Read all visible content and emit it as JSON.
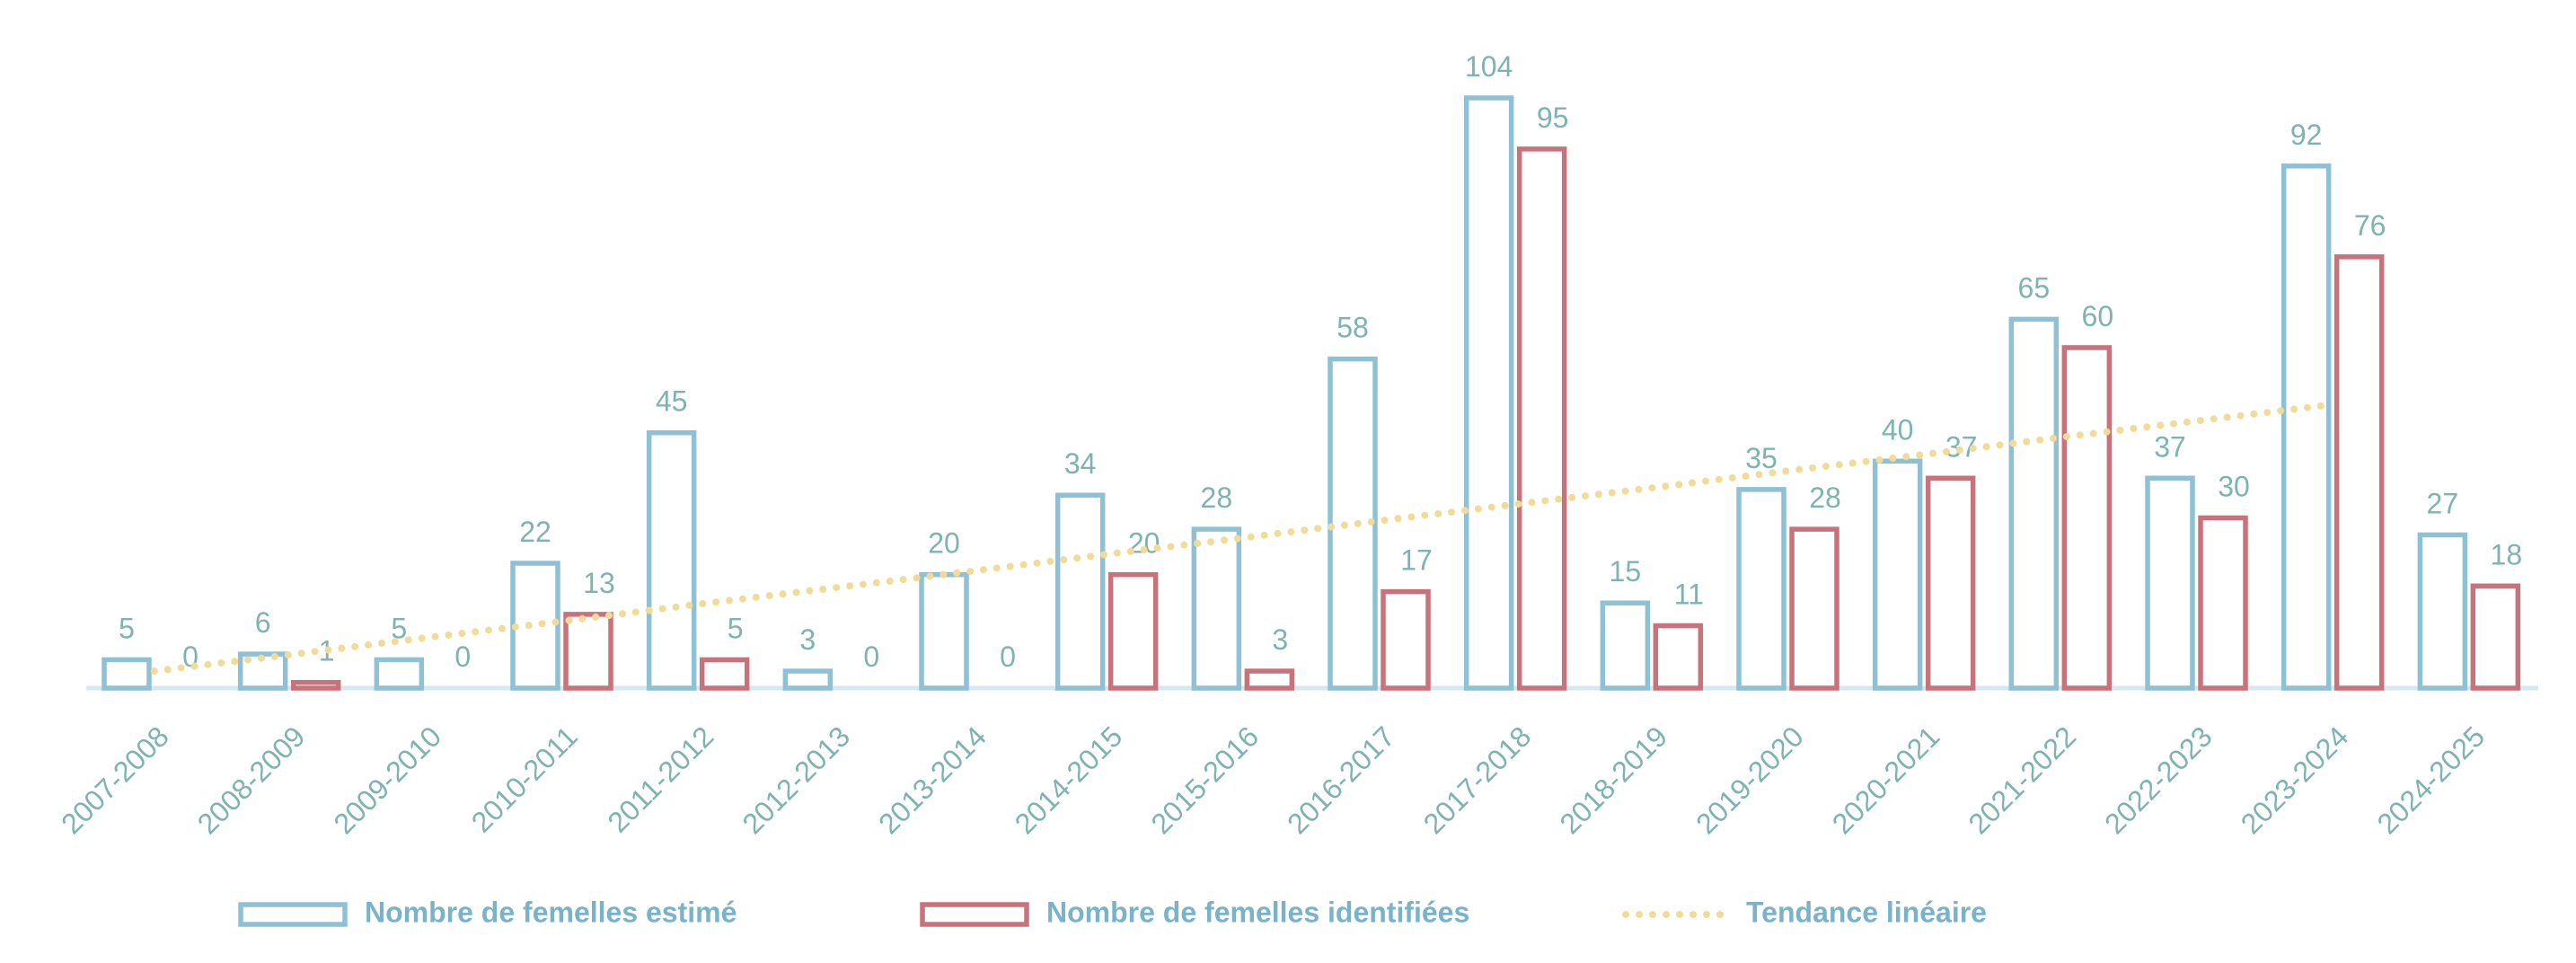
{
  "chart_data": {
    "type": "bar",
    "categories": [
      "2007-2008",
      "2008-2009",
      "2009-2010",
      "2010-2011",
      "2011-2012",
      "2012-2013",
      "2013-2014",
      "2014-2015",
      "2015-2016",
      "2016-2017",
      "2017-2018",
      "2018-2019",
      "2019-2020",
      "2020-2021",
      "2021-2022",
      "2022-2023",
      "2023-2024",
      "2024-2025"
    ],
    "series": [
      {
        "name": "Nombre de femelles estimé",
        "color": "#8ec1d6",
        "values": [
          5,
          6,
          5,
          22,
          45,
          3,
          20,
          34,
          28,
          58,
          104,
          15,
          35,
          40,
          65,
          37,
          92,
          27
        ]
      },
      {
        "name": "Nombre de femelles identifiées",
        "color": "#c8737c",
        "values": [
          0,
          1,
          0,
          13,
          5,
          0,
          0,
          20,
          3,
          17,
          95,
          11,
          28,
          37,
          60,
          30,
          76,
          18
        ]
      },
      {
        "name": "Tendance linéaire",
        "color": "#f0dc98",
        "type": "line",
        "values": [
          3,
          5.9,
          8.9,
          11.8,
          14.8,
          17.7,
          20.6,
          23.6,
          26.5,
          29.5,
          32.4,
          35.3,
          38.3,
          41.2,
          44.2,
          47.1,
          50,
          null
        ]
      }
    ],
    "ylim": [
      0,
      104
    ],
    "grid": false,
    "legend": "bottom"
  }
}
